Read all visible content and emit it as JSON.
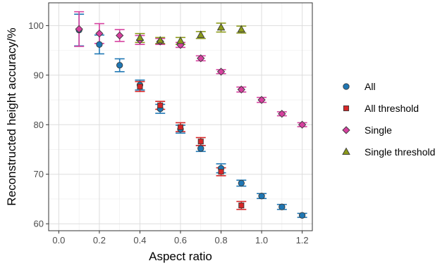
{
  "chart_data": {
    "type": "scatter",
    "xlabel": "Aspect ratio",
    "ylabel": "Reconstructed height accuracy/%",
    "xlim": [
      -0.05,
      1.25
    ],
    "ylim": [
      58.6,
      104.6
    ],
    "x_ticks": [
      "0.0",
      "0.2",
      "0.4",
      "0.6",
      "0.8",
      "1.0",
      "1.2"
    ],
    "x_tick_values": [
      0.0,
      0.2,
      0.4,
      0.6,
      0.8,
      1.0,
      1.2
    ],
    "y_ticks": [
      "60",
      "70",
      "80",
      "90",
      "100"
    ],
    "y_tick_values": [
      60,
      70,
      80,
      90,
      100
    ],
    "grid": true,
    "legend_position": "right",
    "series": [
      {
        "name": "All",
        "marker": "circle",
        "color": "#1f77b4",
        "points": [
          {
            "x": 0.1,
            "y": 99.1,
            "err": 3.2
          },
          {
            "x": 0.2,
            "y": 96.2,
            "err": 1.9
          },
          {
            "x": 0.3,
            "y": 92.0,
            "err": 1.3
          },
          {
            "x": 0.4,
            "y": 88.0,
            "err": 1.0
          },
          {
            "x": 0.5,
            "y": 83.2,
            "err": 0.9
          },
          {
            "x": 0.6,
            "y": 79.1,
            "err": 0.8
          },
          {
            "x": 0.7,
            "y": 75.2,
            "err": 0.6
          },
          {
            "x": 0.8,
            "y": 71.2,
            "err": 0.9
          },
          {
            "x": 0.9,
            "y": 68.2,
            "err": 0.6
          },
          {
            "x": 1.0,
            "y": 65.6,
            "err": 0.5
          },
          {
            "x": 1.1,
            "y": 63.4,
            "err": 0.5
          },
          {
            "x": 1.2,
            "y": 61.7,
            "err": 0.4
          }
        ]
      },
      {
        "name": "All threshold",
        "marker": "square",
        "color": "#d62728",
        "points": [
          {
            "x": 0.4,
            "y": 87.7,
            "err": 1.0
          },
          {
            "x": 0.5,
            "y": 83.9,
            "err": 0.8
          },
          {
            "x": 0.6,
            "y": 79.5,
            "err": 0.9
          },
          {
            "x": 0.7,
            "y": 76.6,
            "err": 0.8
          },
          {
            "x": 0.8,
            "y": 70.5,
            "err": 0.8
          },
          {
            "x": 0.9,
            "y": 63.7,
            "err": 0.8
          }
        ]
      },
      {
        "name": "Single",
        "marker": "diamond",
        "color": "#d6409f",
        "points": [
          {
            "x": 0.1,
            "y": 99.3,
            "err": 3.5
          },
          {
            "x": 0.2,
            "y": 98.4,
            "err": 2.0
          },
          {
            "x": 0.3,
            "y": 98.0,
            "err": 1.2
          },
          {
            "x": 0.4,
            "y": 97.1,
            "err": 0.9
          },
          {
            "x": 0.5,
            "y": 96.8,
            "err": 0.6
          },
          {
            "x": 0.6,
            "y": 96.1,
            "err": 0.5
          },
          {
            "x": 0.7,
            "y": 93.4,
            "err": 0.5
          },
          {
            "x": 0.8,
            "y": 90.7,
            "err": 0.4
          },
          {
            "x": 0.9,
            "y": 87.1,
            "err": 0.5
          },
          {
            "x": 1.0,
            "y": 85.0,
            "err": 0.5
          },
          {
            "x": 1.1,
            "y": 82.2,
            "err": 0.4
          },
          {
            "x": 1.2,
            "y": 80.0,
            "err": 0.4
          }
        ]
      },
      {
        "name": "Single threshold",
        "marker": "triangle",
        "color": "#8c9a1b",
        "points": [
          {
            "x": 0.4,
            "y": 97.5,
            "err": 0.9
          },
          {
            "x": 0.5,
            "y": 97.0,
            "err": 0.6
          },
          {
            "x": 0.6,
            "y": 96.9,
            "err": 0.7
          },
          {
            "x": 0.7,
            "y": 98.1,
            "err": 0.7
          },
          {
            "x": 0.8,
            "y": 99.6,
            "err": 0.9
          },
          {
            "x": 0.9,
            "y": 99.2,
            "err": 0.7
          }
        ]
      }
    ]
  }
}
